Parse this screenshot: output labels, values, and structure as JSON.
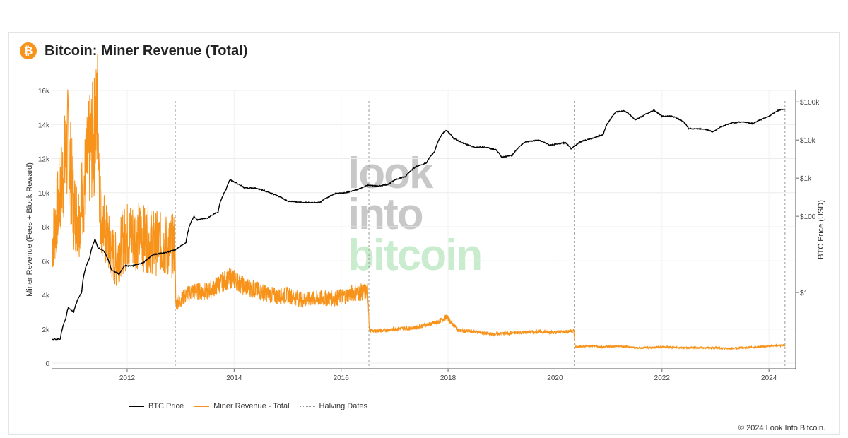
{
  "header": {
    "title": "Bitcoin: Miner Revenue (Total)",
    "logo_symbol": "₿"
  },
  "watermark": {
    "line1": "look",
    "line2": "into",
    "line3": "bitcoin"
  },
  "credit": "© 2024 Look Into Bitcoin.",
  "colors": {
    "price": "#000000",
    "revenue": "#f7931a",
    "halving": "#999999",
    "watermark_gray": "#c8c8c8",
    "watermark_green": "#c9ecce"
  },
  "chart_data": {
    "type": "line",
    "title": "Bitcoin: Miner Revenue (Total)",
    "x_range": [
      2010.6,
      2024.5
    ],
    "x_ticks": [
      {
        "value": 2012,
        "label": "2012"
      },
      {
        "value": 2014,
        "label": "2014"
      },
      {
        "value": 2016,
        "label": "2016"
      },
      {
        "value": 2018,
        "label": "2018"
      },
      {
        "value": 2020,
        "label": "2020"
      },
      {
        "value": 2022,
        "label": "2022"
      },
      {
        "value": 2024,
        "label": "2024"
      }
    ],
    "y_left": {
      "label": "Miner Revenue (Fees + Block Reward)",
      "range": [
        0,
        16000
      ],
      "ticks": [
        {
          "value": 0,
          "label": "0"
        },
        {
          "value": 2000,
          "label": "2k"
        },
        {
          "value": 4000,
          "label": "4k"
        },
        {
          "value": 6000,
          "label": "6k"
        },
        {
          "value": 8000,
          "label": "8k"
        },
        {
          "value": 10000,
          "label": "10k"
        },
        {
          "value": 12000,
          "label": "12k"
        },
        {
          "value": 14000,
          "label": "14k"
        },
        {
          "value": 16000,
          "label": "16k"
        }
      ]
    },
    "y_right": {
      "label": "BTC Price (USD)",
      "scale": "log",
      "range": [
        0.01,
        200000
      ],
      "ticks": [
        {
          "value": 1,
          "label": "$1"
        },
        {
          "value": 100,
          "label": "$100"
        },
        {
          "value": 1000,
          "label": "$1k"
        },
        {
          "value": 10000,
          "label": "$10k"
        },
        {
          "value": 100000,
          "label": "$100k"
        }
      ]
    },
    "legend": {
      "position": "bottom-left",
      "items": [
        {
          "name": "BTC Price"
        },
        {
          "name": "Miner Revenue - Total"
        },
        {
          "name": "Halving Dates"
        }
      ]
    },
    "halving_dates": [
      2012.9,
      2016.52,
      2020.36,
      2024.3
    ],
    "series": [
      {
        "name": "BTC Price",
        "axis": "right",
        "x": [
          2010.6,
          2010.75,
          2010.85,
          2010.9,
          2011.0,
          2011.15,
          2011.3,
          2011.4,
          2011.45,
          2011.55,
          2011.7,
          2011.85,
          2011.95,
          2012.1,
          2012.3,
          2012.5,
          2012.7,
          2012.9,
          2013.1,
          2013.25,
          2013.3,
          2013.5,
          2013.7,
          2013.85,
          2013.92,
          2014.0,
          2014.2,
          2014.4,
          2014.7,
          2015.0,
          2015.3,
          2015.6,
          2015.9,
          2016.1,
          2016.3,
          2016.5,
          2016.7,
          2016.9,
          2017.0,
          2017.2,
          2017.4,
          2017.6,
          2017.75,
          2017.9,
          2017.97,
          2018.1,
          2018.3,
          2018.5,
          2018.7,
          2018.9,
          2019.0,
          2019.2,
          2019.45,
          2019.7,
          2019.9,
          2020.2,
          2020.3,
          2020.5,
          2020.7,
          2020.9,
          2021.0,
          2021.15,
          2021.3,
          2021.5,
          2021.6,
          2021.85,
          2022.0,
          2022.2,
          2022.4,
          2022.5,
          2022.8,
          2022.95,
          2023.1,
          2023.3,
          2023.5,
          2023.7,
          2023.9,
          2024.0,
          2024.2,
          2024.3
        ],
        "values": [
          0.06,
          0.06,
          0.2,
          0.4,
          0.3,
          1.0,
          8,
          25,
          15,
          13,
          4,
          3,
          5,
          5,
          6,
          10,
          11,
          13,
          20,
          100,
          80,
          90,
          130,
          500,
          900,
          800,
          550,
          550,
          400,
          250,
          230,
          230,
          400,
          420,
          500,
          650,
          620,
          700,
          900,
          1100,
          2000,
          2500,
          5000,
          15000,
          18000,
          11000,
          8000,
          6500,
          6500,
          5500,
          3500,
          4000,
          9000,
          10000,
          7300,
          8500,
          6000,
          9300,
          11000,
          14000,
          30000,
          55000,
          58000,
          34000,
          40000,
          60000,
          42000,
          42000,
          30000,
          20000,
          19500,
          16500,
          22000,
          28000,
          30000,
          27000,
          37000,
          42000,
          62000,
          64000
        ]
      },
      {
        "name": "Miner Revenue - Total",
        "axis": "left",
        "x": [
          2010.6,
          2010.7,
          2010.8,
          2010.9,
          2011.0,
          2011.1,
          2011.2,
          2011.3,
          2011.4,
          2011.45,
          2011.5,
          2011.6,
          2011.7,
          2011.8,
          2011.9,
          2012.0,
          2012.2,
          2012.4,
          2012.6,
          2012.8,
          2012.89,
          2012.91,
          2013.2,
          2013.5,
          2013.8,
          2013.95,
          2014.2,
          2014.5,
          2014.8,
          2015.0,
          2015.3,
          2015.6,
          2015.9,
          2016.2,
          2016.5,
          2016.53,
          2016.8,
          2017.0,
          2017.4,
          2017.8,
          2017.97,
          2018.2,
          2018.5,
          2018.8,
          2019.1,
          2019.4,
          2019.7,
          2020.0,
          2020.35,
          2020.38,
          2020.6,
          2020.9,
          2021.2,
          2021.4,
          2021.5,
          2021.7,
          2022.0,
          2022.4,
          2022.8,
          2023.0,
          2023.3,
          2023.5,
          2023.8,
          2024.0,
          2024.3
        ],
        "values": [
          7000,
          9000,
          11000,
          13000,
          9000,
          8500,
          10500,
          12500,
          13500,
          15000,
          9000,
          7500,
          6500,
          6000,
          7000,
          7500,
          7500,
          7200,
          7000,
          6800,
          7000,
          3500,
          4200,
          4200,
          4800,
          5000,
          4500,
          4200,
          3900,
          4000,
          3700,
          3800,
          3800,
          4100,
          4200,
          1900,
          1900,
          2000,
          2100,
          2400,
          2700,
          1900,
          1850,
          1700,
          1750,
          1800,
          1850,
          1800,
          1900,
          950,
          1000,
          950,
          1000,
          950,
          900,
          900,
          950,
          900,
          900,
          900,
          850,
          900,
          950,
          1000,
          1050
        ]
      }
    ]
  }
}
